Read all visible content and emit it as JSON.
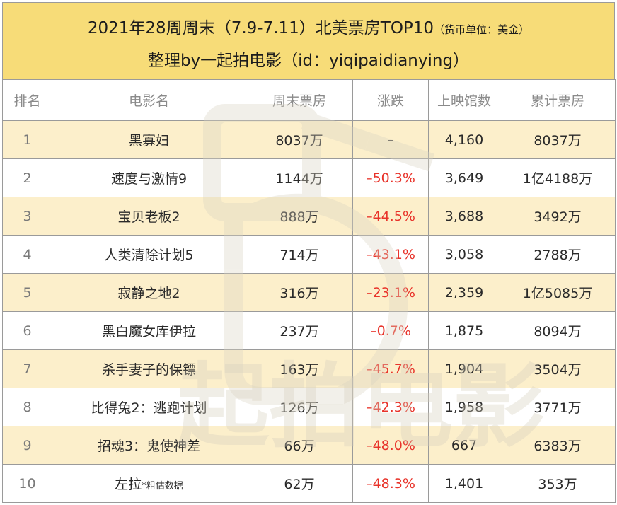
{
  "header": {
    "title_main": "2021年28周周末（7.9-7.11）北美票房TOP10",
    "title_unit": "（货币单位：美金）",
    "subtitle": "整理by一起拍电影（id：yiqipaidianying）"
  },
  "columns": [
    "排名",
    "电影名",
    "周末票房",
    "涨跌",
    "上映馆数",
    "累计票房"
  ],
  "rows": [
    {
      "rank": "1",
      "title": "黑寡妇",
      "note": "",
      "weekend": "8037万",
      "change": "–",
      "theaters": "4,160",
      "total": "8037万"
    },
    {
      "rank": "2",
      "title": "速度与激情9",
      "note": "",
      "weekend": "1144万",
      "change": "–50.3%",
      "theaters": "3,649",
      "total": "1亿4188万"
    },
    {
      "rank": "3",
      "title": "宝贝老板2",
      "note": "",
      "weekend": "888万",
      "change": "–44.5%",
      "theaters": "3,688",
      "total": "3492万"
    },
    {
      "rank": "4",
      "title": "人类清除计划5",
      "note": "",
      "weekend": "714万",
      "change": "–43.1%",
      "theaters": "3,058",
      "total": "2788万"
    },
    {
      "rank": "5",
      "title": "寂静之地2",
      "note": "",
      "weekend": "316万",
      "change": "–23.1%",
      "theaters": "2,359",
      "total": "1亿5085万"
    },
    {
      "rank": "6",
      "title": "黑白魔女库伊拉",
      "note": "",
      "weekend": "237万",
      "change": "–0.7%",
      "theaters": "1,875",
      "total": "8094万"
    },
    {
      "rank": "7",
      "title": "杀手妻子的保镖",
      "note": "",
      "weekend": "163万",
      "change": "–45.7%",
      "theaters": "1,904",
      "total": "3504万"
    },
    {
      "rank": "8",
      "title": "比得兔2：逃跑计划",
      "note": "",
      "weekend": "126万",
      "change": "–42.3%",
      "theaters": "1,958",
      "total": "3771万"
    },
    {
      "rank": "9",
      "title": "招魂3：鬼使神差",
      "note": "",
      "weekend": "66万",
      "change": "–48.0%",
      "theaters": "667",
      "total": "6383万"
    },
    {
      "rank": "10",
      "title": "左拉",
      "note": "*粗估数据",
      "weekend": "62万",
      "change": "–48.3%",
      "theaters": "1,401",
      "total": "353万"
    }
  ],
  "watermark": {
    "text": "起拍电影",
    "color": "#e6e1d2"
  },
  "colors": {
    "header_bg": "#f7dc78",
    "odd_row_bg": "#fcefcb",
    "even_row_bg": "#ffffff",
    "negative": "#e8332a"
  }
}
